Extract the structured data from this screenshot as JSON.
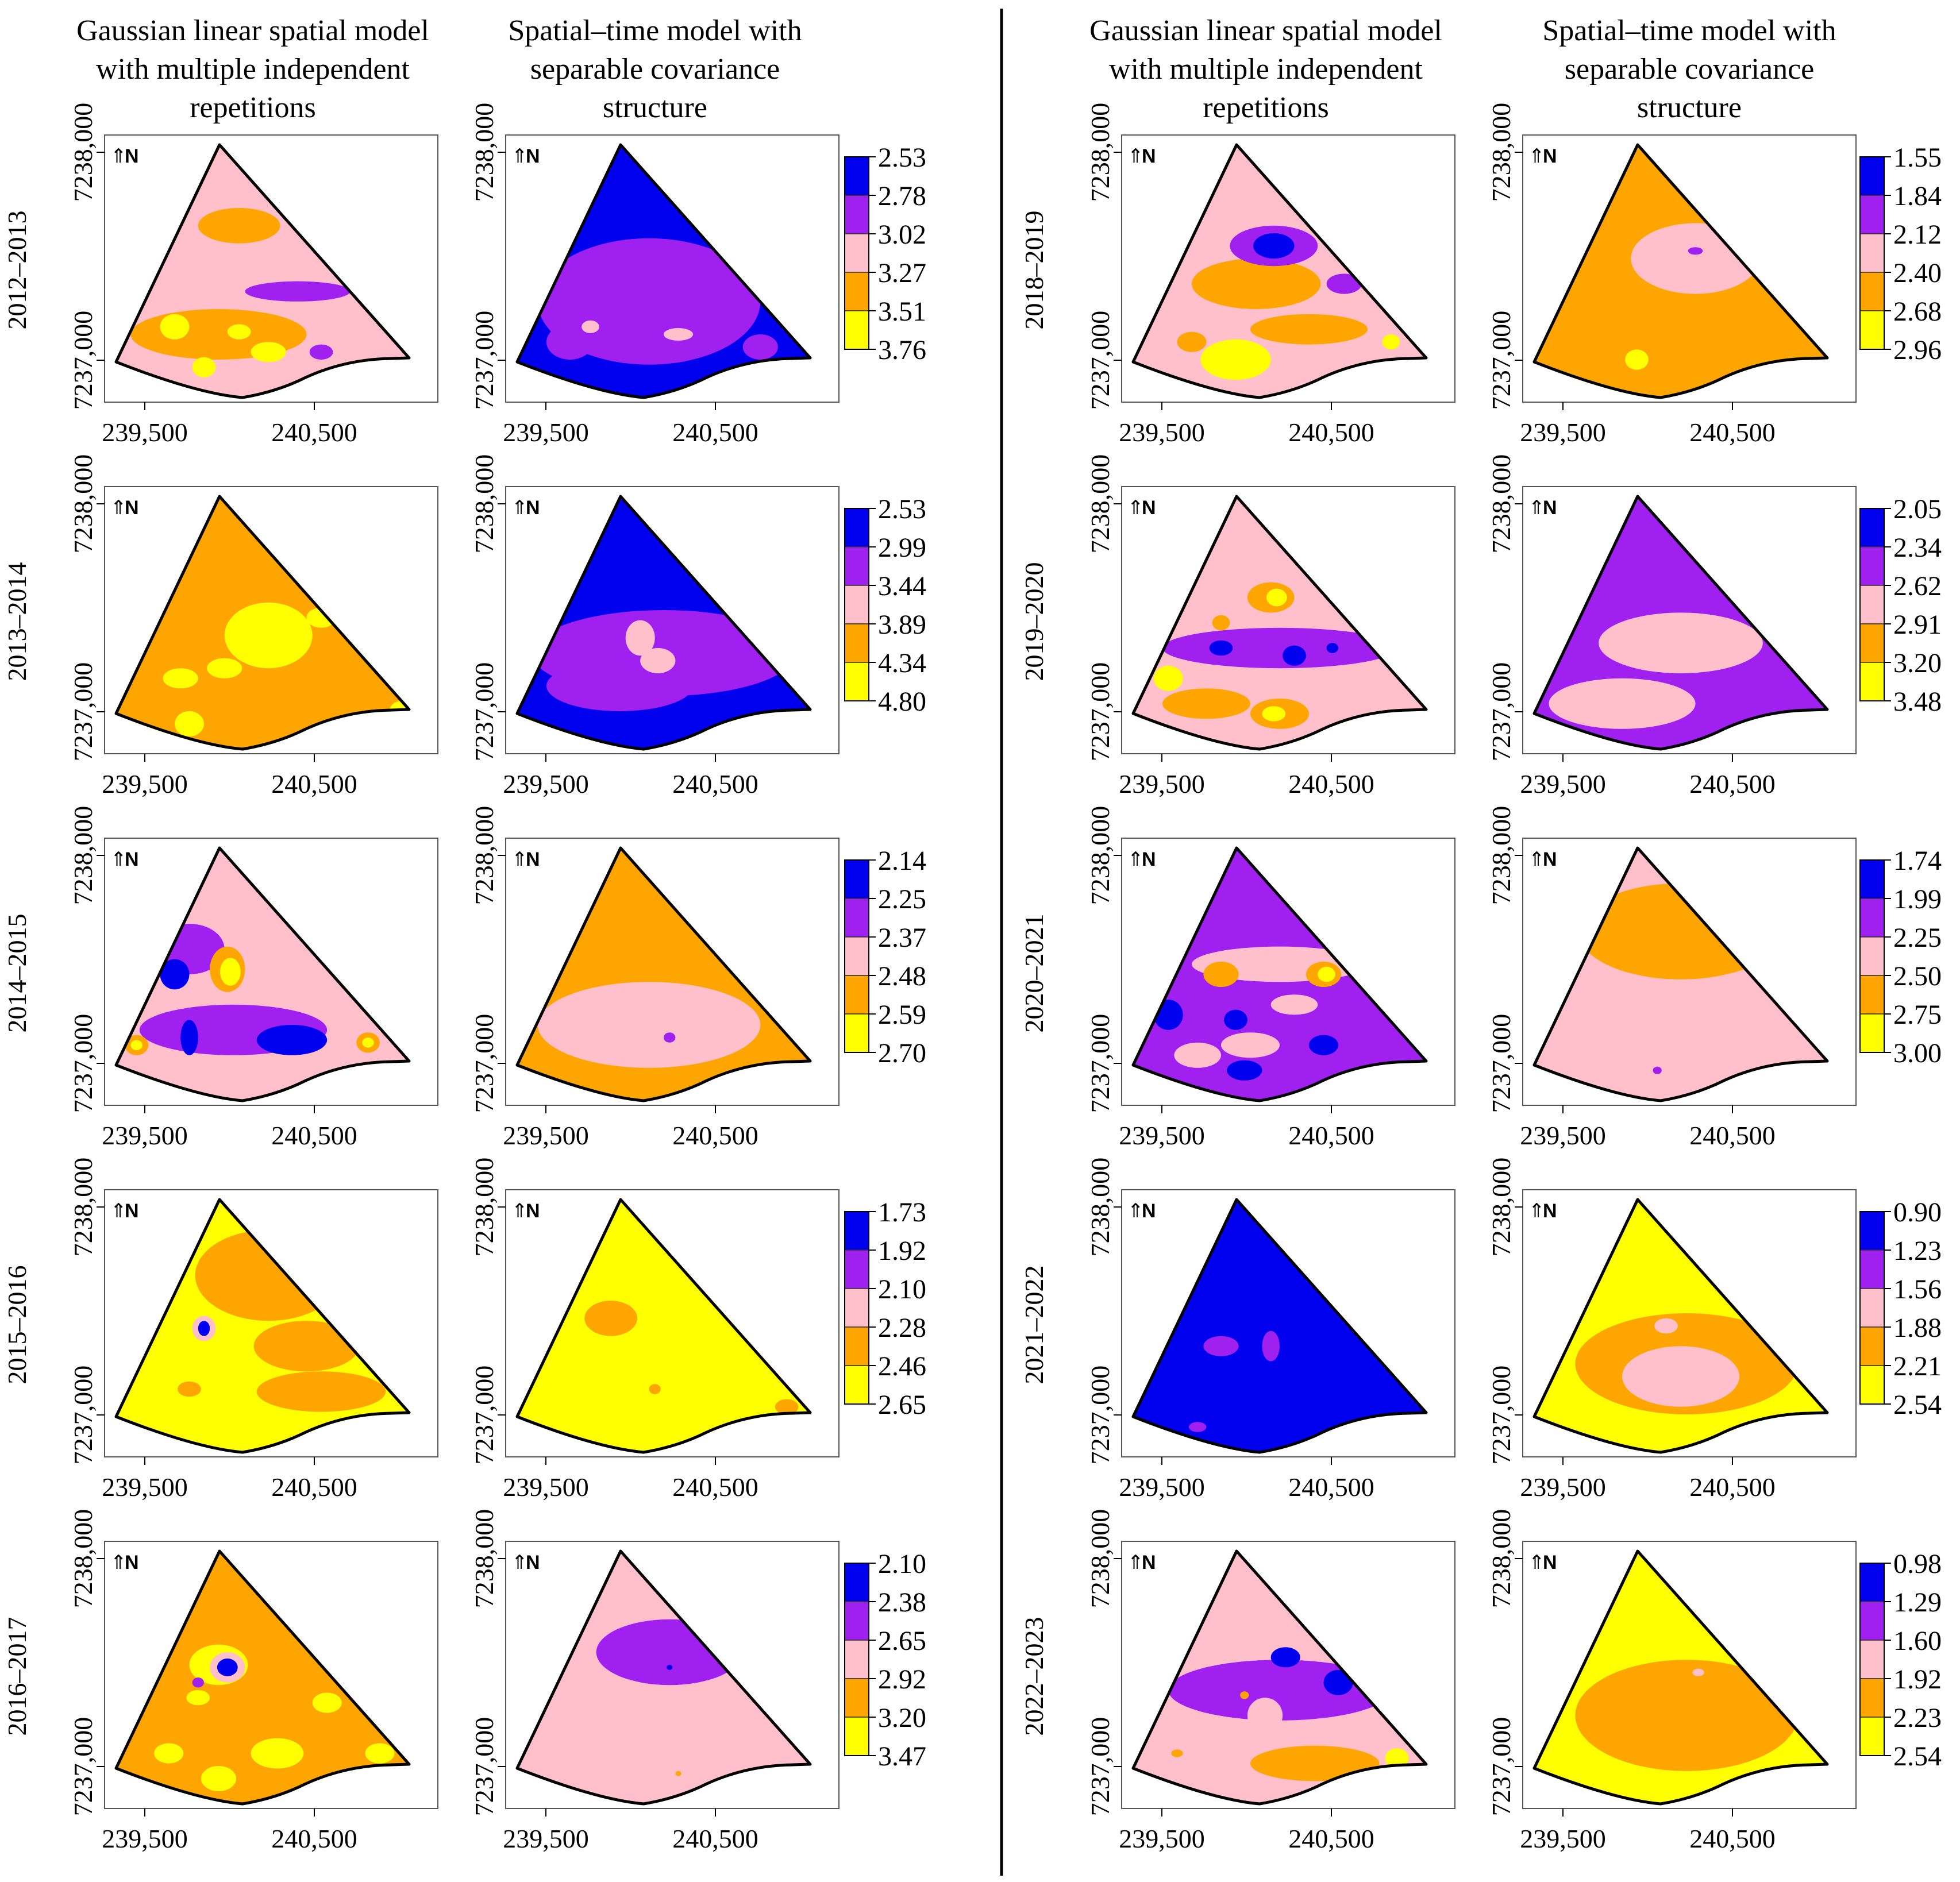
{
  "column_headers": {
    "left_gaussian": [
      "Gaussian linear spatial model",
      "with multiple independent",
      "repetitions"
    ],
    "left_spatiotemporal": [
      "Spatial–time model with",
      "separable covariance",
      "structure"
    ],
    "right_gaussian": [
      "Gaussian linear spatial model",
      "with multiple independent",
      "repetitions"
    ],
    "right_spatiotemporal": [
      "Spatial–time model with",
      "separable covariance",
      "structure"
    ]
  },
  "axes": {
    "x_ticks": [
      "239,500",
      "240,500"
    ],
    "y_ticks": [
      "7237,000",
      "7238,000"
    ]
  },
  "north_label": "N",
  "colors": {
    "blue": "#0000ee",
    "purple": "#a020f0",
    "pink": "#ffc0cb",
    "orange": "#ffa500",
    "yellow": "#ffff00",
    "boundary": "#000000"
  },
  "periods": [
    {
      "label": "2012–2013",
      "legend": [
        "2.53",
        "2.78",
        "3.02",
        "3.27",
        "3.51",
        "3.76"
      ]
    },
    {
      "label": "2013–2014",
      "legend": [
        "2.53",
        "2.99",
        "3.44",
        "3.89",
        "4.34",
        "4.80"
      ]
    },
    {
      "label": "2014–2015",
      "legend": [
        "2.14",
        "2.25",
        "2.37",
        "2.48",
        "2.59",
        "2.70"
      ]
    },
    {
      "label": "2015–2016",
      "legend": [
        "1.73",
        "1.92",
        "2.10",
        "2.28",
        "2.46",
        "2.65"
      ]
    },
    {
      "label": "2016–2017",
      "legend": [
        "2.10",
        "2.38",
        "2.65",
        "2.92",
        "3.20",
        "3.47"
      ]
    },
    {
      "label": "2018–2019",
      "legend": [
        "1.55",
        "1.84",
        "2.12",
        "2.40",
        "2.68",
        "2.96"
      ]
    },
    {
      "label": "2019–2020",
      "legend": [
        "2.05",
        "2.34",
        "2.62",
        "2.91",
        "3.20",
        "3.48"
      ]
    },
    {
      "label": "2020–2021",
      "legend": [
        "1.74",
        "1.99",
        "2.25",
        "2.50",
        "2.75",
        "3.00"
      ]
    },
    {
      "label": "2021–2022",
      "legend": [
        "0.90",
        "1.23",
        "1.56",
        "1.88",
        "2.21",
        "2.54"
      ]
    },
    {
      "label": "2022–2023",
      "legend": [
        "0.98",
        "1.29",
        "1.60",
        "1.92",
        "2.23",
        "2.54"
      ]
    }
  ],
  "maps": {
    "g1": {
      "base": "pink",
      "blobs": [
        {
          "u": 0.42,
          "v": 0.32,
          "rx": 0.14,
          "ry": 0.07,
          "c": "orange"
        },
        {
          "u": 0.62,
          "v": 0.58,
          "rx": 0.18,
          "ry": 0.04,
          "c": "purple"
        },
        {
          "u": 0.35,
          "v": 0.75,
          "rx": 0.3,
          "ry": 0.1,
          "c": "orange"
        },
        {
          "u": 0.2,
          "v": 0.72,
          "rx": 0.05,
          "ry": 0.05,
          "c": "yellow"
        },
        {
          "u": 0.42,
          "v": 0.74,
          "rx": 0.04,
          "ry": 0.03,
          "c": "yellow"
        },
        {
          "u": 0.3,
          "v": 0.88,
          "rx": 0.04,
          "ry": 0.04,
          "c": "yellow"
        },
        {
          "u": 0.52,
          "v": 0.82,
          "rx": 0.06,
          "ry": 0.04,
          "c": "yellow"
        },
        {
          "u": 0.7,
          "v": 0.82,
          "rx": 0.04,
          "ry": 0.03,
          "c": "purple"
        }
      ]
    },
    "s1": {
      "base": "blue",
      "blobs": [
        {
          "u": 0.45,
          "v": 0.62,
          "rx": 0.38,
          "ry": 0.25,
          "c": "purple"
        },
        {
          "u": 0.18,
          "v": 0.78,
          "rx": 0.08,
          "ry": 0.07,
          "c": "purple"
        },
        {
          "u": 0.25,
          "v": 0.72,
          "rx": 0.03,
          "ry": 0.025,
          "c": "pink"
        },
        {
          "u": 0.55,
          "v": 0.75,
          "rx": 0.05,
          "ry": 0.025,
          "c": "pink"
        },
        {
          "u": 0.83,
          "v": 0.8,
          "rx": 0.06,
          "ry": 0.05,
          "c": "purple"
        }
      ]
    },
    "g2": {
      "base": "orange",
      "blobs": [
        {
          "u": 0.52,
          "v": 0.55,
          "rx": 0.15,
          "ry": 0.13,
          "c": "yellow"
        },
        {
          "u": 0.22,
          "v": 0.72,
          "rx": 0.06,
          "ry": 0.04,
          "c": "yellow"
        },
        {
          "u": 0.37,
          "v": 0.68,
          "rx": 0.06,
          "ry": 0.04,
          "c": "yellow"
        },
        {
          "u": 0.7,
          "v": 0.48,
          "rx": 0.05,
          "ry": 0.04,
          "c": "yellow"
        },
        {
          "u": 0.25,
          "v": 0.9,
          "rx": 0.05,
          "ry": 0.05,
          "c": "yellow"
        },
        {
          "u": 0.97,
          "v": 0.86,
          "rx": 0.04,
          "ry": 0.05,
          "c": "yellow"
        }
      ]
    },
    "s2": {
      "base": "blue",
      "blobs": [
        {
          "u": 0.5,
          "v": 0.62,
          "rx": 0.45,
          "ry": 0.17,
          "c": "purple"
        },
        {
          "u": 0.35,
          "v": 0.75,
          "rx": 0.25,
          "ry": 0.1,
          "c": "purple"
        },
        {
          "u": 0.42,
          "v": 0.56,
          "rx": 0.05,
          "ry": 0.07,
          "c": "pink"
        },
        {
          "u": 0.48,
          "v": 0.65,
          "rx": 0.06,
          "ry": 0.05,
          "c": "pink"
        }
      ]
    },
    "g3": {
      "base": "pink",
      "blobs": [
        {
          "u": 0.25,
          "v": 0.4,
          "rx": 0.12,
          "ry": 0.1,
          "c": "purple"
        },
        {
          "u": 0.2,
          "v": 0.5,
          "rx": 0.05,
          "ry": 0.06,
          "c": "blue"
        },
        {
          "u": 0.38,
          "v": 0.48,
          "rx": 0.06,
          "ry": 0.09,
          "c": "orange"
        },
        {
          "u": 0.39,
          "v": 0.49,
          "rx": 0.035,
          "ry": 0.055,
          "c": "yellow"
        },
        {
          "u": 0.4,
          "v": 0.72,
          "rx": 0.32,
          "ry": 0.1,
          "c": "purple"
        },
        {
          "u": 0.25,
          "v": 0.75,
          "rx": 0.03,
          "ry": 0.07,
          "c": "blue"
        },
        {
          "u": 0.6,
          "v": 0.76,
          "rx": 0.12,
          "ry": 0.06,
          "c": "blue"
        },
        {
          "u": 0.07,
          "v": 0.78,
          "rx": 0.04,
          "ry": 0.04,
          "c": "orange"
        },
        {
          "u": 0.07,
          "v": 0.78,
          "rx": 0.02,
          "ry": 0.02,
          "c": "yellow"
        },
        {
          "u": 0.86,
          "v": 0.77,
          "rx": 0.04,
          "ry": 0.04,
          "c": "orange"
        },
        {
          "u": 0.86,
          "v": 0.77,
          "rx": 0.02,
          "ry": 0.02,
          "c": "yellow"
        },
        {
          "u": 0.72,
          "v": 0.36,
          "rx": 0.02,
          "ry": 0.02,
          "c": "orange"
        }
      ]
    },
    "s3": {
      "base": "orange",
      "blobs": [
        {
          "u": 0.45,
          "v": 0.7,
          "rx": 0.38,
          "ry": 0.17,
          "c": "pink"
        },
        {
          "u": 0.52,
          "v": 0.75,
          "rx": 0.02,
          "ry": 0.02,
          "c": "purple"
        }
      ]
    },
    "g4": {
      "base": "yellow",
      "blobs": [
        {
          "u": 0.52,
          "v": 0.3,
          "rx": 0.25,
          "ry": 0.18,
          "c": "orange"
        },
        {
          "u": 0.65,
          "v": 0.58,
          "rx": 0.18,
          "ry": 0.1,
          "c": "orange"
        },
        {
          "u": 0.7,
          "v": 0.76,
          "rx": 0.22,
          "ry": 0.08,
          "c": "orange"
        },
        {
          "u": 0.25,
          "v": 0.75,
          "rx": 0.04,
          "ry": 0.03,
          "c": "orange"
        },
        {
          "u": 0.3,
          "v": 0.51,
          "rx": 0.04,
          "ry": 0.05,
          "c": "pink"
        },
        {
          "u": 0.3,
          "v": 0.51,
          "rx": 0.02,
          "ry": 0.03,
          "c": "blue"
        }
      ]
    },
    "s4": {
      "base": "yellow",
      "blobs": [
        {
          "u": 0.32,
          "v": 0.47,
          "rx": 0.09,
          "ry": 0.07,
          "c": "orange"
        },
        {
          "u": 0.47,
          "v": 0.75,
          "rx": 0.02,
          "ry": 0.02,
          "c": "orange"
        },
        {
          "u": 0.92,
          "v": 0.82,
          "rx": 0.04,
          "ry": 0.03,
          "c": "orange"
        }
      ]
    },
    "g5": {
      "base": "orange",
      "blobs": [
        {
          "u": 0.35,
          "v": 0.45,
          "rx": 0.1,
          "ry": 0.08,
          "c": "yellow"
        },
        {
          "u": 0.38,
          "v": 0.46,
          "rx": 0.06,
          "ry": 0.06,
          "c": "pink"
        },
        {
          "u": 0.38,
          "v": 0.46,
          "rx": 0.035,
          "ry": 0.035,
          "c": "blue"
        },
        {
          "u": 0.28,
          "v": 0.58,
          "rx": 0.04,
          "ry": 0.03,
          "c": "yellow"
        },
        {
          "u": 0.18,
          "v": 0.8,
          "rx": 0.05,
          "ry": 0.04,
          "c": "yellow"
        },
        {
          "u": 0.35,
          "v": 0.9,
          "rx": 0.06,
          "ry": 0.05,
          "c": "yellow"
        },
        {
          "u": 0.55,
          "v": 0.8,
          "rx": 0.09,
          "ry": 0.06,
          "c": "yellow"
        },
        {
          "u": 0.72,
          "v": 0.6,
          "rx": 0.05,
          "ry": 0.04,
          "c": "yellow"
        },
        {
          "u": 0.9,
          "v": 0.8,
          "rx": 0.05,
          "ry": 0.04,
          "c": "yellow"
        },
        {
          "u": 0.28,
          "v": 0.52,
          "rx": 0.02,
          "ry": 0.02,
          "c": "purple"
        }
      ]
    },
    "s5": {
      "base": "pink",
      "blobs": [
        {
          "u": 0.52,
          "v": 0.4,
          "rx": 0.25,
          "ry": 0.13,
          "c": "purple"
        },
        {
          "u": 0.52,
          "v": 0.46,
          "rx": 0.01,
          "ry": 0.01,
          "c": "blue"
        },
        {
          "u": 0.55,
          "v": 0.88,
          "rx": 0.01,
          "ry": 0.01,
          "c": "orange"
        }
      ]
    },
    "g6": {
      "base": "pink",
      "blobs": [
        {
          "u": 0.42,
          "v": 0.55,
          "rx": 0.22,
          "ry": 0.1,
          "c": "orange"
        },
        {
          "u": 0.48,
          "v": 0.4,
          "rx": 0.15,
          "ry": 0.08,
          "c": "purple"
        },
        {
          "u": 0.48,
          "v": 0.4,
          "rx": 0.07,
          "ry": 0.05,
          "c": "blue"
        },
        {
          "u": 0.6,
          "v": 0.73,
          "rx": 0.2,
          "ry": 0.06,
          "c": "orange"
        },
        {
          "u": 0.35,
          "v": 0.85,
          "rx": 0.12,
          "ry": 0.08,
          "c": "yellow"
        },
        {
          "u": 0.2,
          "v": 0.78,
          "rx": 0.05,
          "ry": 0.04,
          "c": "orange"
        },
        {
          "u": 0.72,
          "v": 0.55,
          "rx": 0.06,
          "ry": 0.04,
          "c": "purple"
        },
        {
          "u": 0.88,
          "v": 0.78,
          "rx": 0.03,
          "ry": 0.03,
          "c": "yellow"
        }
      ]
    },
    "s6": {
      "base": "orange",
      "blobs": [
        {
          "u": 0.55,
          "v": 0.45,
          "rx": 0.22,
          "ry": 0.14,
          "c": "pink"
        },
        {
          "u": 0.55,
          "v": 0.42,
          "rx": 0.025,
          "ry": 0.015,
          "c": "purple"
        },
        {
          "u": 0.35,
          "v": 0.85,
          "rx": 0.04,
          "ry": 0.04,
          "c": "yellow"
        }
      ]
    },
    "g7": {
      "base": "pink",
      "blobs": [
        {
          "u": 0.5,
          "v": 0.6,
          "rx": 0.4,
          "ry": 0.08,
          "c": "purple"
        },
        {
          "u": 0.3,
          "v": 0.6,
          "rx": 0.04,
          "ry": 0.03,
          "c": "blue"
        },
        {
          "u": 0.55,
          "v": 0.63,
          "rx": 0.04,
          "ry": 0.04,
          "c": "blue"
        },
        {
          "u": 0.68,
          "v": 0.6,
          "rx": 0.02,
          "ry": 0.02,
          "c": "blue"
        },
        {
          "u": 0.47,
          "v": 0.4,
          "rx": 0.08,
          "ry": 0.06,
          "c": "orange"
        },
        {
          "u": 0.49,
          "v": 0.4,
          "rx": 0.035,
          "ry": 0.035,
          "c": "yellow"
        },
        {
          "u": 0.12,
          "v": 0.72,
          "rx": 0.05,
          "ry": 0.05,
          "c": "yellow"
        },
        {
          "u": 0.25,
          "v": 0.82,
          "rx": 0.15,
          "ry": 0.06,
          "c": "orange"
        },
        {
          "u": 0.5,
          "v": 0.86,
          "rx": 0.1,
          "ry": 0.06,
          "c": "orange"
        },
        {
          "u": 0.48,
          "v": 0.86,
          "rx": 0.04,
          "ry": 0.03,
          "c": "yellow"
        },
        {
          "u": 0.3,
          "v": 0.5,
          "rx": 0.03,
          "ry": 0.03,
          "c": "orange"
        }
      ]
    },
    "s7": {
      "base": "purple",
      "blobs": [
        {
          "u": 0.5,
          "v": 0.58,
          "rx": 0.28,
          "ry": 0.12,
          "c": "pink"
        },
        {
          "u": 0.3,
          "v": 0.82,
          "rx": 0.25,
          "ry": 0.1,
          "c": "pink"
        }
      ]
    },
    "g8": {
      "base": "purple",
      "blobs": [
        {
          "u": 0.5,
          "v": 0.46,
          "rx": 0.3,
          "ry": 0.07,
          "c": "pink"
        },
        {
          "u": 0.3,
          "v": 0.5,
          "rx": 0.06,
          "ry": 0.05,
          "c": "orange"
        },
        {
          "u": 0.65,
          "v": 0.5,
          "rx": 0.06,
          "ry": 0.05,
          "c": "orange"
        },
        {
          "u": 0.66,
          "v": 0.5,
          "rx": 0.03,
          "ry": 0.03,
          "c": "yellow"
        },
        {
          "u": 0.12,
          "v": 0.66,
          "rx": 0.05,
          "ry": 0.06,
          "c": "blue"
        },
        {
          "u": 0.22,
          "v": 0.82,
          "rx": 0.08,
          "ry": 0.05,
          "c": "pink"
        },
        {
          "u": 0.4,
          "v": 0.78,
          "rx": 0.1,
          "ry": 0.05,
          "c": "pink"
        },
        {
          "u": 0.55,
          "v": 0.62,
          "rx": 0.08,
          "ry": 0.04,
          "c": "pink"
        },
        {
          "u": 0.35,
          "v": 0.68,
          "rx": 0.04,
          "ry": 0.04,
          "c": "blue"
        },
        {
          "u": 0.65,
          "v": 0.78,
          "rx": 0.05,
          "ry": 0.04,
          "c": "blue"
        },
        {
          "u": 0.38,
          "v": 0.88,
          "rx": 0.06,
          "ry": 0.04,
          "c": "blue"
        }
      ]
    },
    "s8": {
      "base": "pink",
      "blobs": [
        {
          "u": 0.5,
          "v": 0.33,
          "rx": 0.35,
          "ry": 0.19,
          "c": "orange"
        },
        {
          "u": 0.5,
          "v": 0.36,
          "rx": 0.45,
          "ry": 0.07,
          "c": "orange"
        },
        {
          "u": 0.42,
          "v": 0.88,
          "rx": 0.015,
          "ry": 0.015,
          "c": "purple"
        }
      ]
    },
    "g9": {
      "base": "blue",
      "blobs": [
        {
          "u": 0.3,
          "v": 0.58,
          "rx": 0.06,
          "ry": 0.04,
          "c": "purple"
        },
        {
          "u": 0.47,
          "v": 0.58,
          "rx": 0.03,
          "ry": 0.06,
          "c": "purple"
        },
        {
          "u": 0.22,
          "v": 0.9,
          "rx": 0.03,
          "ry": 0.02,
          "c": "purple"
        }
      ]
    },
    "s9": {
      "base": "yellow",
      "blobs": [
        {
          "u": 0.52,
          "v": 0.65,
          "rx": 0.38,
          "ry": 0.2,
          "c": "orange"
        },
        {
          "u": 0.5,
          "v": 0.7,
          "rx": 0.2,
          "ry": 0.12,
          "c": "pink"
        },
        {
          "u": 0.45,
          "v": 0.5,
          "rx": 0.04,
          "ry": 0.03,
          "c": "pink"
        }
      ]
    },
    "g10": {
      "base": "pink",
      "blobs": [
        {
          "u": 0.5,
          "v": 0.55,
          "rx": 0.38,
          "ry": 0.12,
          "c": "purple"
        },
        {
          "u": 0.52,
          "v": 0.42,
          "rx": 0.05,
          "ry": 0.04,
          "c": "blue"
        },
        {
          "u": 0.7,
          "v": 0.52,
          "rx": 0.05,
          "ry": 0.05,
          "c": "blue"
        },
        {
          "u": 0.45,
          "v": 0.65,
          "rx": 0.06,
          "ry": 0.07,
          "c": "pink"
        },
        {
          "u": 0.38,
          "v": 0.57,
          "rx": 0.015,
          "ry": 0.015,
          "c": "orange"
        },
        {
          "u": 0.62,
          "v": 0.84,
          "rx": 0.22,
          "ry": 0.07,
          "c": "orange"
        },
        {
          "u": 0.9,
          "v": 0.82,
          "rx": 0.04,
          "ry": 0.04,
          "c": "yellow"
        },
        {
          "u": 0.15,
          "v": 0.8,
          "rx": 0.02,
          "ry": 0.015,
          "c": "orange"
        }
      ]
    },
    "s10": {
      "base": "yellow",
      "blobs": [
        {
          "u": 0.52,
          "v": 0.65,
          "rx": 0.38,
          "ry": 0.22,
          "c": "orange"
        },
        {
          "u": 0.56,
          "v": 0.48,
          "rx": 0.02,
          "ry": 0.015,
          "c": "pink"
        }
      ]
    }
  }
}
